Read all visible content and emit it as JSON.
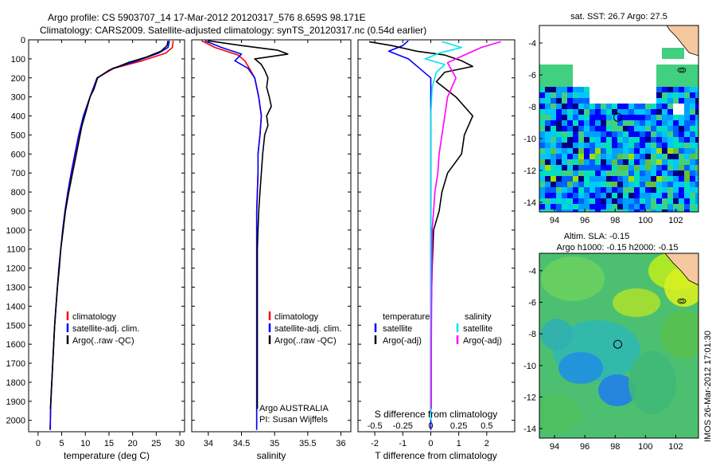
{
  "header": {
    "line1": "Argo profile: CS 5903707_14 17-Mar-2012 20120317_576 8.659S 98.171E",
    "line2": "Climatology: CARS2009. Satellite-adjusted climatology: synTS_20120317.nc (0.54d earlier)"
  },
  "colors": {
    "climatology": "#ff0000",
    "satellite": "#0000ff",
    "argo": "#000000",
    "sat_salinity": "#00e5ee",
    "argo_salinity_diff": "#ff00ff"
  },
  "depth_axis": {
    "ticks": [
      0,
      100,
      200,
      300,
      400,
      500,
      600,
      700,
      800,
      900,
      1000,
      1100,
      1200,
      1300,
      1400,
      1500,
      1600,
      1700,
      1800,
      1900,
      2000
    ]
  },
  "chart_data": [
    {
      "id": "temperature",
      "type": "line",
      "xlabel": "temperature (deg C)",
      "xlim": [
        -2,
        31
      ],
      "ylim": [
        2060,
        0
      ],
      "xticks": [
        0,
        5,
        10,
        15,
        20,
        25,
        30
      ],
      "legend": [
        "climatology",
        "satellite-adj. clim.",
        "Argo(..raw -QC)"
      ],
      "series": [
        {
          "name": "climatology",
          "color": "#ff0000",
          "points": [
            [
              28.6,
              5
            ],
            [
              28.4,
              40
            ],
            [
              27,
              70
            ],
            [
              22,
              110
            ],
            [
              16,
              150
            ],
            [
              12.5,
              200
            ],
            [
              11,
              300
            ],
            [
              9.6,
              400
            ],
            [
              8.6,
              500
            ],
            [
              7.8,
              600
            ],
            [
              7,
              700
            ],
            [
              6.3,
              800
            ],
            [
              5.7,
              900
            ],
            [
              5.2,
              1000
            ],
            [
              4.8,
              1100
            ],
            [
              4.4,
              1200
            ],
            [
              4.1,
              1300
            ],
            [
              3.8,
              1400
            ],
            [
              3.5,
              1500
            ],
            [
              3.3,
              1600
            ],
            [
              3.1,
              1700
            ],
            [
              2.9,
              1800
            ],
            [
              2.7,
              1900
            ],
            [
              2.6,
              2000
            ],
            [
              2.5,
              2050
            ]
          ]
        },
        {
          "name": "satellite-adj. clim.",
          "color": "#0000ff",
          "points": [
            [
              27.8,
              5
            ],
            [
              27.5,
              40
            ],
            [
              25.5,
              70
            ],
            [
              21,
              110
            ],
            [
              15.8,
              150
            ],
            [
              12.5,
              200
            ],
            [
              11,
              300
            ],
            [
              9.6,
              400
            ],
            [
              8.6,
              500
            ],
            [
              7.8,
              600
            ],
            [
              7,
              700
            ],
            [
              6.3,
              800
            ],
            [
              5.7,
              900
            ],
            [
              5.2,
              1000
            ],
            [
              4.8,
              1100
            ],
            [
              4.4,
              1200
            ],
            [
              4.1,
              1300
            ],
            [
              3.8,
              1400
            ],
            [
              3.5,
              1500
            ],
            [
              3.3,
              1600
            ],
            [
              3.1,
              1700
            ],
            [
              2.9,
              1800
            ],
            [
              2.7,
              1900
            ],
            [
              2.6,
              2000
            ],
            [
              2.6,
              2050
            ]
          ]
        },
        {
          "name": "Argo(..raw -QC)",
          "color": "#000000",
          "points": [
            [
              27.5,
              5
            ],
            [
              27.3,
              30
            ],
            [
              26,
              60
            ],
            [
              23,
              90
            ],
            [
              19,
              120
            ],
            [
              15,
              160
            ],
            [
              12.6,
              200
            ],
            [
              11.8,
              260
            ],
            [
              11,
              300
            ],
            [
              10.1,
              380
            ],
            [
              9.3,
              450
            ],
            [
              8.9,
              500
            ],
            [
              8.1,
              600
            ],
            [
              7.3,
              700
            ],
            [
              6.5,
              800
            ],
            [
              5.8,
              900
            ],
            [
              5.3,
              1000
            ],
            [
              4.8,
              1100
            ],
            [
              4.5,
              1200
            ],
            [
              4.1,
              1300
            ],
            [
              3.8,
              1400
            ],
            [
              3.5,
              1500
            ],
            [
              3.3,
              1600
            ],
            [
              3.1,
              1700
            ],
            [
              2.9,
              1800
            ],
            [
              2.7,
              1900
            ],
            [
              2.6,
              1940
            ]
          ]
        }
      ]
    },
    {
      "id": "salinity",
      "type": "line",
      "xlabel": "salinity",
      "xlim": [
        33.75,
        36.15
      ],
      "ylim": [
        2060,
        0
      ],
      "xticks": [
        34,
        34.5,
        35,
        35.5,
        36
      ],
      "legend": [
        "climatology",
        "satellite-adj. clim.",
        "Argo(..raw -QC)"
      ],
      "annotation": [
        "Argo AUSTRALIA",
        "PI: Susan Wijffels"
      ],
      "series": [
        {
          "name": "climatology",
          "color": "#ff0000",
          "points": [
            [
              33.9,
              5
            ],
            [
              34.1,
              40
            ],
            [
              34.45,
              80
            ],
            [
              34.55,
              110
            ],
            [
              34.62,
              150
            ],
            [
              34.7,
              200
            ],
            [
              34.76,
              300
            ],
            [
              34.8,
              400
            ],
            [
              34.78,
              500
            ],
            [
              34.75,
              600
            ],
            [
              34.75,
              700
            ],
            [
              34.74,
              800
            ],
            [
              34.73,
              900
            ],
            [
              34.73,
              1000
            ],
            [
              34.73,
              1200
            ],
            [
              34.73,
              1400
            ],
            [
              34.73,
              1600
            ],
            [
              34.73,
              1800
            ],
            [
              34.73,
              2000
            ],
            [
              34.73,
              2050
            ]
          ]
        },
        {
          "name": "satellite-adj. clim.",
          "color": "#0000ff",
          "points": [
            [
              33.95,
              5
            ],
            [
              34.2,
              40
            ],
            [
              34.5,
              75
            ],
            [
              34.4,
              110
            ],
            [
              34.6,
              150
            ],
            [
              34.7,
              200
            ],
            [
              34.76,
              300
            ],
            [
              34.8,
              400
            ],
            [
              34.78,
              500
            ],
            [
              34.75,
              600
            ],
            [
              34.75,
              700
            ],
            [
              34.74,
              800
            ],
            [
              34.73,
              900
            ],
            [
              34.73,
              1000
            ],
            [
              34.73,
              1200
            ],
            [
              34.73,
              1400
            ],
            [
              34.73,
              1600
            ],
            [
              34.73,
              1800
            ],
            [
              34.73,
              2000
            ],
            [
              34.73,
              2050
            ]
          ]
        },
        {
          "name": "Argo(..raw -QC)",
          "color": "#000000",
          "points": [
            [
              34.0,
              5
            ],
            [
              34.5,
              30
            ],
            [
              35.05,
              55
            ],
            [
              35.2,
              75
            ],
            [
              34.7,
              100
            ],
            [
              34.8,
              130
            ],
            [
              34.85,
              160
            ],
            [
              34.9,
              200
            ],
            [
              34.88,
              250
            ],
            [
              34.92,
              300
            ],
            [
              34.95,
              350
            ],
            [
              34.88,
              400
            ],
            [
              34.9,
              450
            ],
            [
              34.85,
              500
            ],
            [
              34.82,
              600
            ],
            [
              34.8,
              700
            ],
            [
              34.78,
              800
            ],
            [
              34.76,
              900
            ],
            [
              34.75,
              1000
            ],
            [
              34.74,
              1100
            ],
            [
              34.74,
              1200
            ],
            [
              34.74,
              1400
            ],
            [
              34.74,
              1600
            ],
            [
              34.74,
              1800
            ],
            [
              34.74,
              1940
            ]
          ]
        }
      ]
    },
    {
      "id": "differences",
      "type": "line",
      "xlabel": "T difference from climatology",
      "xlabel_top": "S difference from climatology",
      "xlim": [
        -2.6,
        3.0
      ],
      "ylim": [
        2060,
        0
      ],
      "xticks": [
        -2,
        -1,
        0,
        1,
        2
      ],
      "xticks_top": [
        "-0.5",
        "-0.25",
        "0",
        "0.25",
        "0.5"
      ],
      "xticks_top_pos": [
        -2,
        -1,
        0,
        1,
        2
      ],
      "legend_headers": [
        "temperature",
        "salinity"
      ],
      "legend_left": [
        "satellite",
        "Argo(-adj)"
      ],
      "legend_right": [
        "satellite",
        "Argo(-adj)"
      ],
      "series": [
        {
          "name": "T satellite",
          "color": "#0000ff",
          "points": [
            [
              -0.8,
              5
            ],
            [
              -1,
              30
            ],
            [
              -1.5,
              60
            ],
            [
              -0.8,
              100
            ],
            [
              -0.4,
              150
            ],
            [
              0,
              200
            ],
            [
              0,
              400
            ],
            [
              0,
              800
            ],
            [
              0,
              1200
            ],
            [
              0,
              1600
            ],
            [
              0,
              2000
            ],
            [
              0,
              2050
            ]
          ]
        },
        {
          "name": "T Argo(-adj)",
          "color": "#000000",
          "points": [
            [
              -2.2,
              10
            ],
            [
              -1.4,
              30
            ],
            [
              -0.5,
              60
            ],
            [
              0.5,
              80
            ],
            [
              1.1,
              110
            ],
            [
              1.5,
              140
            ],
            [
              0.5,
              170
            ],
            [
              0.2,
              220
            ],
            [
              0.9,
              300
            ],
            [
              1.5,
              400
            ],
            [
              1.2,
              500
            ],
            [
              1.1,
              600
            ],
            [
              0.6,
              700
            ],
            [
              0.4,
              800
            ],
            [
              0.3,
              900
            ],
            [
              0.1,
              1000
            ],
            [
              0.05,
              1200
            ],
            [
              0.02,
              1400
            ],
            [
              0,
              1600
            ],
            [
              0,
              1800
            ],
            [
              0,
              1940
            ]
          ]
        },
        {
          "name": "S satellite",
          "color": "#00e5ee",
          "points": [
            [
              0.4,
              10
            ],
            [
              1.1,
              40
            ],
            [
              0.3,
              70
            ],
            [
              -0.2,
              100
            ],
            [
              0.5,
              130
            ],
            [
              0.2,
              170
            ],
            [
              0.05,
              250
            ],
            [
              0,
              400
            ],
            [
              0,
              800
            ],
            [
              0,
              1200
            ],
            [
              0,
              1600
            ],
            [
              0,
              2000
            ]
          ]
        },
        {
          "name": "S Argo(-adj)",
          "color": "#ff00ff",
          "points": [
            [
              2.5,
              10
            ],
            [
              1.8,
              40
            ],
            [
              1.2,
              80
            ],
            [
              0.6,
              120
            ],
            [
              0.9,
              200
            ],
            [
              0.6,
              300
            ],
            [
              0.5,
              400
            ],
            [
              0.4,
              500
            ],
            [
              0.3,
              600
            ],
            [
              0.25,
              700
            ],
            [
              0.15,
              800
            ],
            [
              0.1,
              900
            ],
            [
              0.05,
              1000
            ],
            [
              0.04,
              1200
            ],
            [
              0.03,
              1400
            ],
            [
              0.02,
              1600
            ],
            [
              0.02,
              1800
            ],
            [
              0.02,
              1940
            ]
          ]
        }
      ]
    },
    {
      "id": "sst-map",
      "type": "heatmap",
      "title": "sat. SST: 26.7 Argo: 27.5",
      "xlim": [
        93,
        103.5
      ],
      "ylim": [
        -14.6,
        -2.9
      ],
      "xticks": [
        94,
        96,
        98,
        100,
        102
      ],
      "yticks": [
        -4,
        -6,
        -8,
        -10,
        -12,
        -14
      ],
      "argo_position": [
        98.17,
        -8.66
      ]
    },
    {
      "id": "sla-map",
      "type": "heatmap",
      "title": "Altim. SLA: -0.15",
      "subtitle": "Argo h1000: -0.15 h2000: -0.15",
      "xlim": [
        93,
        103.5
      ],
      "ylim": [
        -14.6,
        -2.9
      ],
      "xticks": [
        94,
        96,
        98,
        100,
        102
      ],
      "yticks": [
        -4,
        -6,
        -8,
        -10,
        -12,
        -14
      ],
      "argo_position": [
        98.17,
        -8.66
      ]
    }
  ],
  "footer": {
    "stamp": "IMOS 26-Mar-2012 17:01:30"
  }
}
